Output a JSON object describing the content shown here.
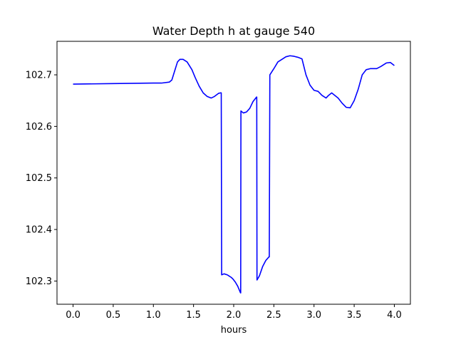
{
  "chart_data": {
    "type": "line",
    "title": "Water Depth h at gauge 540",
    "xlabel": "hours",
    "ylabel": "",
    "xlim": [
      -0.2,
      4.2
    ],
    "ylim": [
      102.255,
      102.765
    ],
    "xticks": [
      0.0,
      0.5,
      1.0,
      1.5,
      2.0,
      2.5,
      3.0,
      3.5,
      4.0
    ],
    "xtick_labels": [
      "0.0",
      "0.5",
      "1.0",
      "1.5",
      "2.0",
      "2.5",
      "3.0",
      "3.5",
      "4.0"
    ],
    "yticks": [
      102.3,
      102.4,
      102.5,
      102.6,
      102.7
    ],
    "ytick_labels": [
      "102.3",
      "102.4",
      "102.5",
      "102.6",
      "102.7"
    ],
    "grid": false,
    "legend": "none",
    "series": [
      {
        "color": "#0000ff",
        "x": [
          0.0,
          0.5,
          1.0,
          1.1,
          1.2,
          1.23,
          1.27,
          1.3,
          1.33,
          1.37,
          1.42,
          1.48,
          1.52,
          1.57,
          1.62,
          1.67,
          1.72,
          1.76,
          1.81,
          1.835,
          1.845,
          1.85,
          1.88,
          1.92,
          1.94,
          1.97,
          1.99,
          2.02,
          2.05,
          2.085,
          2.087,
          2.09,
          2.12,
          2.16,
          2.2,
          2.24,
          2.285,
          2.287,
          2.29,
          2.32,
          2.36,
          2.4,
          2.44,
          2.443,
          2.45,
          2.5,
          2.55,
          2.6,
          2.65,
          2.7,
          2.75,
          2.8,
          2.85,
          2.9,
          2.95,
          3.0,
          3.05,
          3.1,
          3.15,
          3.18,
          3.22,
          3.26,
          3.3,
          3.35,
          3.4,
          3.45,
          3.5,
          3.55,
          3.6,
          3.65,
          3.7,
          3.78,
          3.83,
          3.9,
          3.95,
          4.0
        ],
        "y": [
          102.682,
          102.683,
          102.684,
          102.684,
          102.686,
          102.69,
          102.71,
          102.725,
          102.73,
          102.73,
          102.725,
          102.71,
          102.695,
          102.678,
          102.665,
          102.658,
          102.655,
          102.658,
          102.664,
          102.665,
          102.665,
          102.312,
          102.314,
          102.312,
          102.31,
          102.307,
          102.304,
          102.298,
          102.29,
          102.277,
          102.277,
          102.63,
          102.626,
          102.628,
          102.635,
          102.648,
          102.657,
          102.657,
          102.302,
          102.31,
          102.328,
          102.34,
          102.347,
          102.347,
          102.7,
          102.712,
          102.725,
          102.73,
          102.735,
          102.737,
          102.736,
          102.734,
          102.731,
          102.7,
          102.68,
          102.67,
          102.668,
          102.66,
          102.655,
          102.66,
          102.665,
          102.66,
          102.655,
          102.645,
          102.637,
          102.636,
          102.65,
          102.672,
          102.7,
          102.71,
          102.712,
          102.712,
          102.716,
          102.723,
          102.724,
          102.718
        ]
      }
    ]
  }
}
